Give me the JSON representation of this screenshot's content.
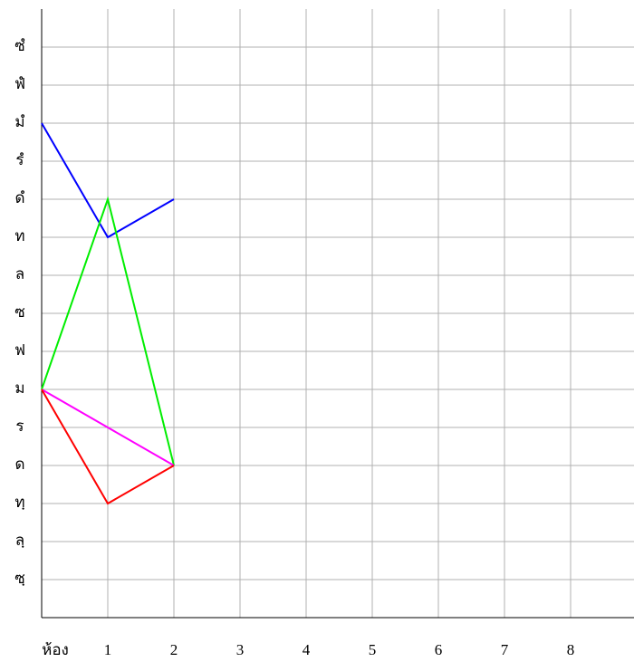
{
  "chart_data": {
    "type": "line",
    "x": [
      0,
      1,
      2
    ],
    "series": [
      {
        "name": null,
        "color": "#0000ff",
        "values": [
          13,
          10,
          11
        ]
      },
      {
        "name": null,
        "color": "#00ee00",
        "values": [
          6,
          11,
          4
        ]
      },
      {
        "name": null,
        "color": "#ff00ff",
        "values": [
          6,
          5,
          4
        ]
      },
      {
        "name": null,
        "color": "#ff0000",
        "values": [
          6,
          3,
          4
        ]
      }
    ],
    "xlim": [
      0,
      9
    ],
    "xticks": [
      {
        "value": 0,
        "label": "ห้อง"
      },
      1,
      2,
      3,
      4,
      5,
      6,
      7,
      8
    ],
    "ylim": [
      0,
      16
    ],
    "yticks": [
      {
        "value": 1,
        "label": "ซฺ"
      },
      {
        "value": 2,
        "label": "ลฺ"
      },
      {
        "value": 3,
        "label": "ทฺ"
      },
      {
        "value": 4,
        "label": "ด"
      },
      {
        "value": 5,
        "label": "ร"
      },
      {
        "value": 6,
        "label": "ม"
      },
      {
        "value": 7,
        "label": "ฟ"
      },
      {
        "value": 8,
        "label": "ซ"
      },
      {
        "value": 9,
        "label": "ล"
      },
      {
        "value": 10,
        "label": "ท"
      },
      {
        "value": 11,
        "label": "ดํ"
      },
      {
        "value": 12,
        "label": "รํ"
      },
      {
        "value": 13,
        "label": "มํ"
      },
      {
        "value": 14,
        "label": "ฟํ"
      },
      {
        "value": 15,
        "label": "ซํ"
      }
    ],
    "grid": true
  }
}
